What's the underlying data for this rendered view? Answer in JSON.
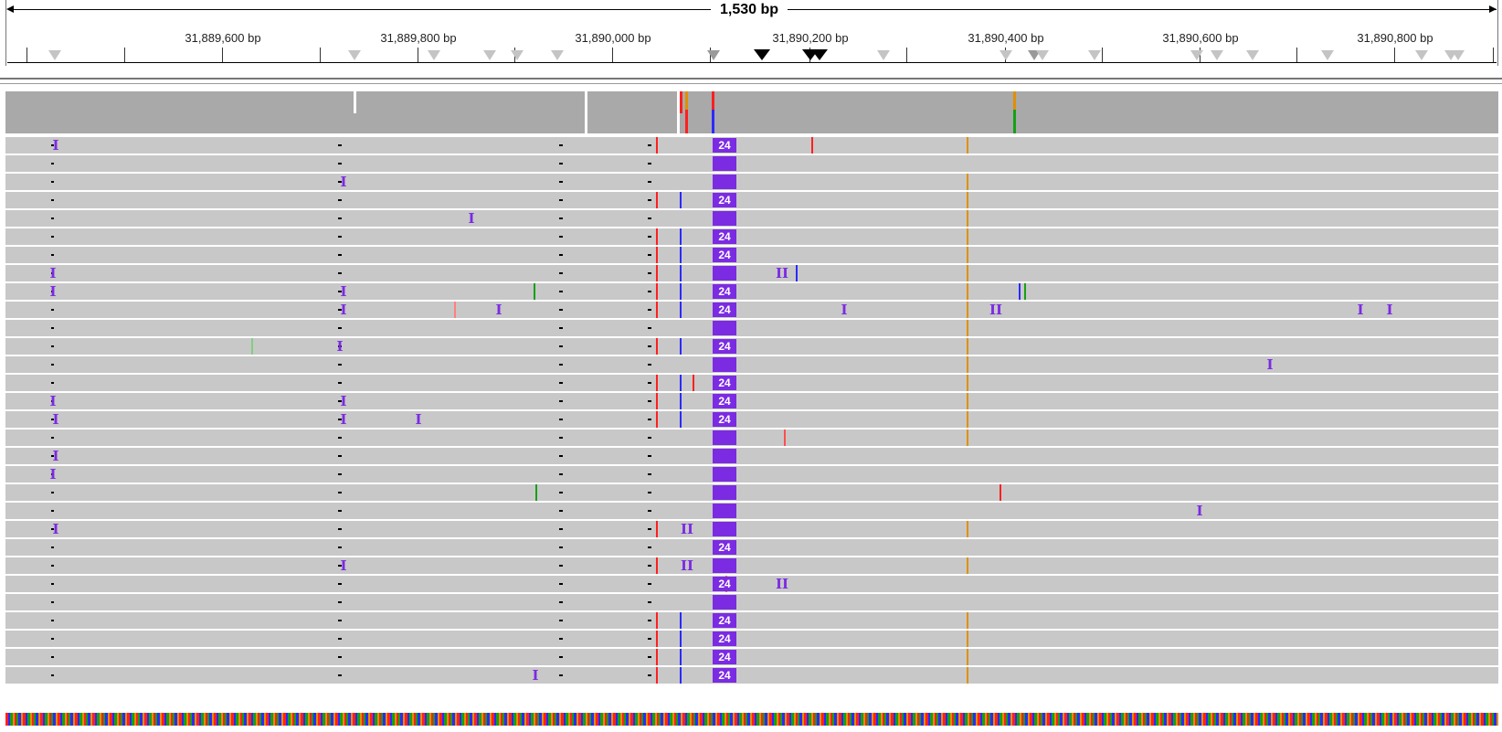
{
  "ruler": {
    "span_label": "1,530 bp",
    "tick_labels": [
      "31,889,600 bp",
      "31,889,800 bp",
      "31,890,000 bp",
      "31,890,200 bp",
      "31,890,400 bp",
      "31,890,600 bp",
      "31,890,800 bp"
    ]
  },
  "insertion": {
    "count_label": "24",
    "single_glyph": "I",
    "double_glyph": "II"
  },
  "colors": {
    "insertion": "#7b2be2",
    "read": "#c8c8c8",
    "coverage": "#a9a9a9",
    "mismatch_red": "#ff2020",
    "mismatch_blue": "#2b2bff",
    "mismatch_green": "#16a016",
    "mismatch_orange": "#e09000"
  },
  "icons": {
    "feature_marker": "triangle-down-icon",
    "span_arrows": "double-arrow-icon"
  }
}
